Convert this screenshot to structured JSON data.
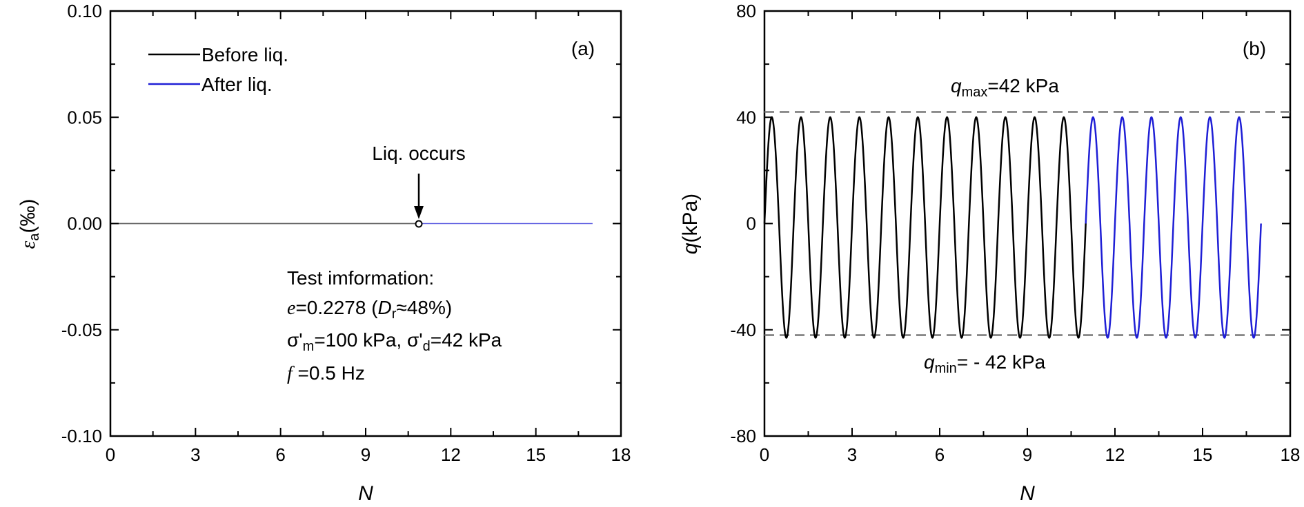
{
  "chart_data": [
    {
      "panel": "(a)",
      "type": "line",
      "xlabel": "N",
      "ylabel_symbol": "ε",
      "ylabel_sub": "a",
      "ylabel_unit": "(‰)",
      "xlim": [
        0,
        18
      ],
      "ylim": [
        -0.1,
        0.1
      ],
      "xticks": [
        "0",
        "3",
        "6",
        "9",
        "12",
        "15",
        "18"
      ],
      "yticks": [
        "-0.10",
        "-0.05",
        "0.00",
        "0.05",
        "0.10"
      ],
      "series": [
        {
          "name": "Before liq.",
          "color": "#000000",
          "x": [
            0,
            11
          ],
          "y": [
            0,
            0
          ]
        },
        {
          "name": "After liq.",
          "color": "#1f1fd6",
          "x": [
            11,
            17
          ],
          "y": [
            0,
            0
          ]
        }
      ],
      "annotation": {
        "text": "Liq. occurs",
        "x": 11,
        "y": 0
      },
      "info": {
        "title": "Test imformation:",
        "line1": {
          "italic": "e",
          "text1": "=0.2278 (",
          "italic2": "D",
          "sub": "r",
          "text2": "≈48%)"
        },
        "line2": {
          "p1": "σ'",
          "s1": "m",
          "p2": "=100 kPa, σ'",
          "s2": "d",
          "p3": "=42 kPa"
        },
        "line3": {
          "italic": "f",
          "text": " =0.5 Hz"
        }
      }
    },
    {
      "panel": "(b)",
      "type": "line",
      "xlabel": "N",
      "ylabel_symbol": "q",
      "ylabel_unit": "(kPa)",
      "xlim": [
        0,
        18
      ],
      "ylim": [
        -80,
        80
      ],
      "xticks": [
        "0",
        "3",
        "6",
        "9",
        "12",
        "15",
        "18"
      ],
      "yticks": [
        "-80",
        "-40",
        "0",
        "40",
        "80"
      ],
      "amplitude_max": 40,
      "amplitude_min": -43,
      "frequency_cycles_per_N": 1,
      "series": [
        {
          "name": "Before liq.",
          "color": "#000000",
          "x_range": [
            0,
            11
          ]
        },
        {
          "name": "After liq.",
          "color": "#1f1fd6",
          "x_range": [
            11,
            17
          ]
        }
      ],
      "ref_lines": [
        {
          "value": 42,
          "sym": "q",
          "sub": "max",
          "text": "=42 kPa"
        },
        {
          "value": -42,
          "sym": "q",
          "sub": "min",
          "text": "= - 42 kPa"
        }
      ]
    }
  ]
}
